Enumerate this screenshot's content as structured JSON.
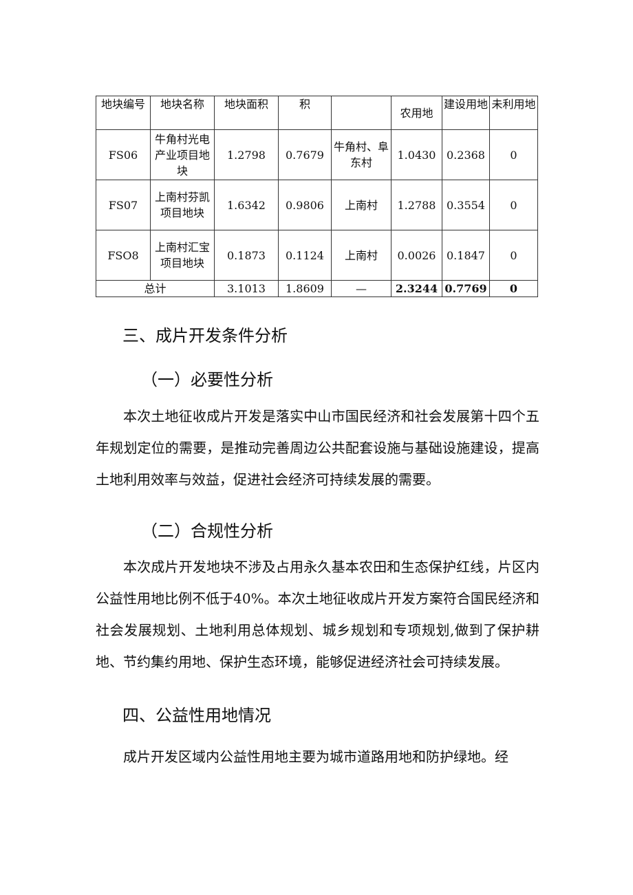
{
  "table": {
    "headers": [
      "地块编号",
      "地块名称",
      "地块面积",
      "积",
      "",
      "农用地",
      "建设用地",
      "未利用地"
    ],
    "rows": [
      [
        "FS06",
        "牛角村光电产业项目地块",
        "1.2798",
        "0.7679",
        "牛角村、阜东村",
        "1.0430",
        "0.2368",
        "0"
      ],
      [
        "FS07",
        "上南村芬凯项目地块",
        "1.6342",
        "0.9806",
        "上南村",
        "1.2788",
        "0.3554",
        "0"
      ],
      [
        "FSO8",
        "上南村汇宝项目地块",
        "0.1873",
        "0.1124",
        "上南村",
        "0.0026",
        "0.1847",
        "0"
      ]
    ],
    "total": [
      "总计",
      "3.1013",
      "1.8609",
      "—",
      "2.3244",
      "0.7769",
      "0"
    ]
  },
  "sections": {
    "s3": "三、成片开发条件分析",
    "s3_1": "（一）必要性分析",
    "p1": "本次土地征收成片开发是落实中山市国民经济和社会发展第十四个五年规划定位的需要，是推动完善周边公共配套设施与基础设施建设，提高土地利用效率与效益，促进社会经济可持续发展的需要。",
    "s3_2": "（二）合规性分析",
    "p2": "本次成片开发地块不涉及占用永久基本农田和生态保护红线，片区内公益性用地比例不低于40%。本次土地征收成片开发方案符合国民经济和社会发展规划、土地利用总体规划、城乡规划和专项规划,做到了保护耕地、节约集约用地、保护生态环境，能够促进经济社会可持续发展。",
    "s4": "四、公益性用地情况",
    "p3": "成片开发区域内公益性用地主要为城市道路用地和防护绿地。经"
  }
}
